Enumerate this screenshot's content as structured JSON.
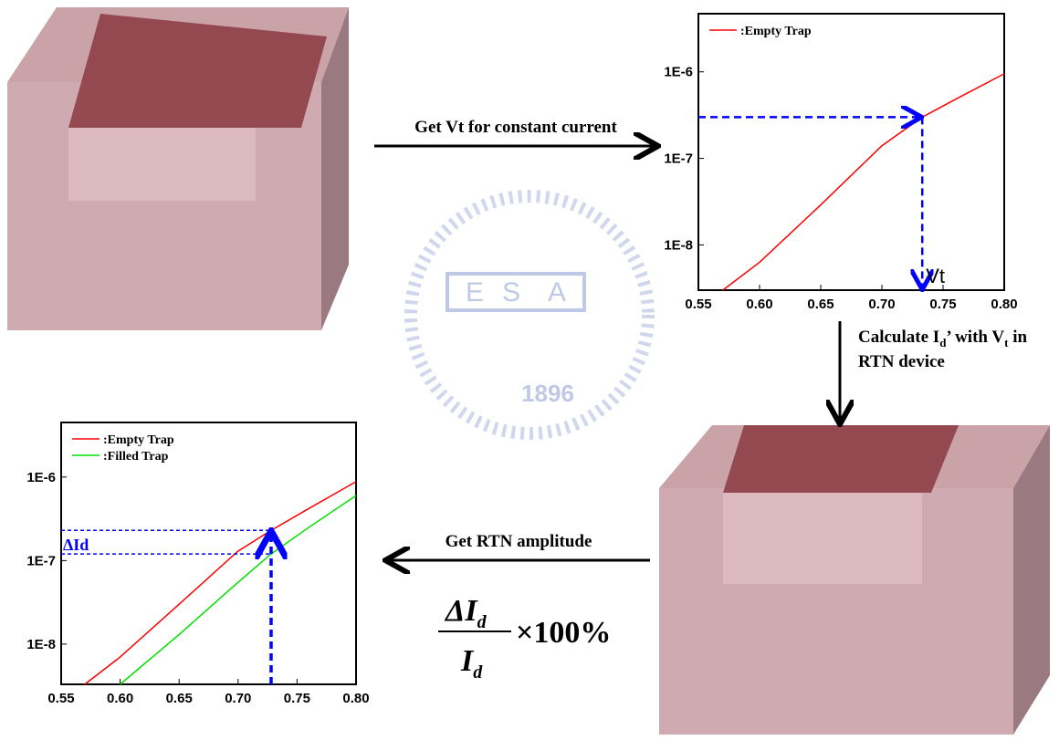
{
  "chart_data": [
    {
      "type": "line",
      "log_y": true,
      "series": [
        {
          "name": ":Empty Trap",
          "color": "#ff0000",
          "x": [
            0.57,
            0.6,
            0.65,
            0.7,
            0.733,
            0.76,
            0.8
          ],
          "values": [
            3e-09,
            6.3e-09,
            2.9e-08,
            1.4e-07,
            3e-07,
            4.8e-07,
            9.5e-07
          ]
        }
      ],
      "xlim": [
        0.55,
        0.8
      ],
      "ylim": [
        3e-09,
        4.7e-06
      ],
      "xticks": [
        0.55,
        {
          "value": 0.6,
          "label": "0.60"
        },
        0.65,
        {
          "value": 0.7,
          "label": "0.70"
        },
        0.75,
        {
          "value": 0.8,
          "label": "0.80"
        }
      ],
      "yticks": [
        {
          "value": 1e-08,
          "label": "1E-8"
        },
        {
          "value": 1e-07,
          "label": "1E-7"
        },
        {
          "value": 1e-06,
          "label": "1E-6"
        }
      ],
      "marker": {
        "x": 0.733,
        "y": 3e-07,
        "label": "Vt"
      }
    },
    {
      "type": "line",
      "log_y": true,
      "series": [
        {
          "name": ":Empty Trap",
          "color": "#ff0000",
          "x": [
            0.57,
            0.6,
            0.65,
            0.7,
            0.728,
            0.76,
            0.8
          ],
          "values": [
            3.3e-09,
            7e-09,
            3e-08,
            1.3e-07,
            2.3e-07,
            4.2e-07,
            8.8e-07
          ]
        },
        {
          "name": ":Filled Trap",
          "color": "#00e000",
          "x": [
            0.6,
            0.65,
            0.7,
            0.728,
            0.76,
            0.8
          ],
          "values": [
            3.3e-09,
            1.3e-08,
            5.5e-08,
            1.2e-07,
            2.5e-07,
            6e-07
          ]
        }
      ],
      "xlim": [
        0.55,
        0.8
      ],
      "ylim": [
        3.3e-09,
        4.5e-06
      ],
      "xticks": [
        0.55,
        {
          "value": 0.6,
          "label": "0.60"
        },
        0.65,
        {
          "value": 0.7,
          "label": "0.70"
        },
        0.75,
        {
          "value": 0.8,
          "label": "0.80"
        }
      ],
      "yticks": [
        {
          "value": 1e-08,
          "label": "1E-8"
        },
        {
          "value": 1e-07,
          "label": "1E-7"
        },
        {
          "value": 1e-06,
          "label": "1E-6"
        }
      ],
      "marker": {
        "x": 0.728,
        "y_high": 2.3e-07,
        "y_low": 1.2e-07,
        "label": "ΔId"
      }
    }
  ],
  "steps": {
    "top": "Get Vt for constant current",
    "right": [
      "Calculate I",
      "d",
      "’ with V",
      "t",
      " in",
      "RTN device"
    ],
    "bottom": "Get RTN amplitude",
    "formula": {
      "num": "ΔI",
      "num_sub": "d",
      "den": "I",
      "den_sub": "d",
      "factor": "×100%"
    }
  },
  "watermark": {
    "letters": [
      "E",
      "S",
      "A"
    ],
    "year": "1896"
  }
}
